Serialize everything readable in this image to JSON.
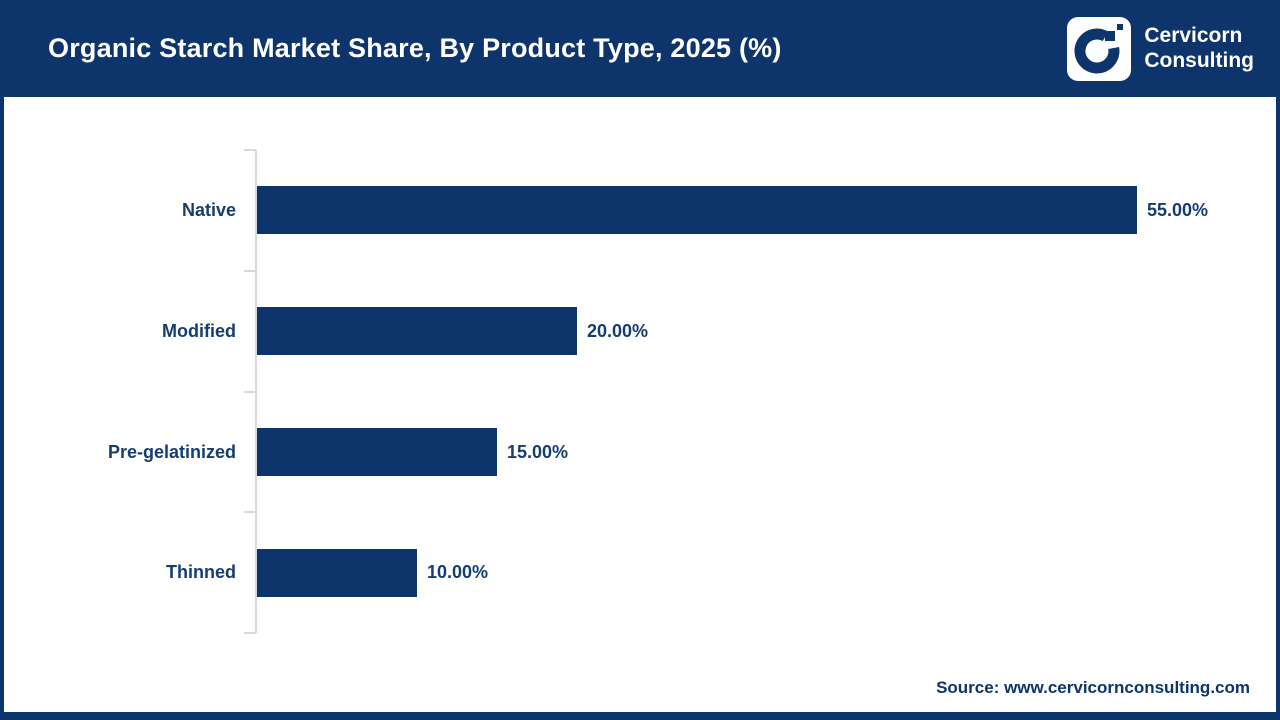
{
  "header": {
    "logo": {
      "line1": "Cervicorn",
      "line2": "Consulting"
    }
  },
  "chart_data": {
    "type": "bar",
    "orientation": "horizontal",
    "title": "Organic Starch Market Share, By Product Type, 2025 (%)",
    "categories": [
      "Native",
      "Modified",
      "Pre-gelatinized",
      "Thinned"
    ],
    "values": [
      55,
      20,
      15,
      10
    ],
    "value_labels": [
      "55.00%",
      "20.00%",
      "15.00%",
      "10.00%"
    ],
    "xlabel": "",
    "ylabel": "",
    "xlim": [
      0,
      60
    ],
    "grid": false,
    "legend": "none",
    "bar_color": "#0e356b"
  },
  "footer": {
    "source": "Source: www.cervicornconsulting.com"
  },
  "colors": {
    "brand_navy": "#0e356b",
    "label_text": "#143d72",
    "axis_gray": "#d9d9d9",
    "background": "#ffffff"
  }
}
